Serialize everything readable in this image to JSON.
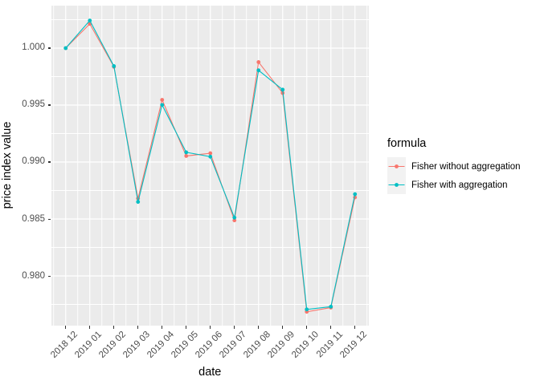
{
  "chart_data": {
    "type": "line",
    "title": "",
    "xlabel": "date",
    "ylabel": "price index value",
    "legend_title": "formula",
    "legend_position": "right",
    "grid": true,
    "categories": [
      "2018 12",
      "2019 01",
      "2019 02",
      "2019 03",
      "2019 04",
      "2019 05",
      "2019 06",
      "2019 07",
      "2019 08",
      "2019 09",
      "2019 10",
      "2019 11",
      "2019 12"
    ],
    "series": [
      {
        "name": "Fisher without aggregation",
        "color": "#F8766D",
        "values": [
          1.0,
          1.00213,
          0.99836,
          0.9868,
          0.99546,
          0.99053,
          0.99077,
          0.98488,
          0.99877,
          0.99606,
          0.97685,
          0.97722,
          0.9869
        ]
      },
      {
        "name": "Fisher with aggregation",
        "color": "#00BFC4",
        "values": [
          1.0,
          1.00242,
          0.99842,
          0.9865,
          0.99501,
          0.99085,
          0.99047,
          0.98512,
          0.99805,
          0.99635,
          0.97706,
          0.9773,
          0.98718
        ]
      }
    ],
    "y_ticks": [
      {
        "label": "1.000",
        "value": 1.0
      },
      {
        "label": "0.995",
        "value": 0.995
      },
      {
        "label": "0.990",
        "value": 0.99
      },
      {
        "label": "0.985",
        "value": 0.985
      },
      {
        "label": "0.980",
        "value": 0.98
      }
    ],
    "ylim": [
      0.975634,
      1.003732
    ],
    "colors": {
      "panel_background": "#EBEBEB",
      "gridline": "#FFFFFF",
      "legend_key_background": "#F2F2F2",
      "axis_text": "#4D4D4D",
      "tick_mark": "#333333",
      "title_text": "#000000"
    }
  },
  "legend": {
    "title": "formula",
    "entries": [
      {
        "label": "Fisher without aggregation",
        "color": "#F8766D"
      },
      {
        "label": "Fisher with aggregation",
        "color": "#00BFC4"
      }
    ]
  },
  "axes": {
    "x_title": "date",
    "y_title": "price index value"
  }
}
